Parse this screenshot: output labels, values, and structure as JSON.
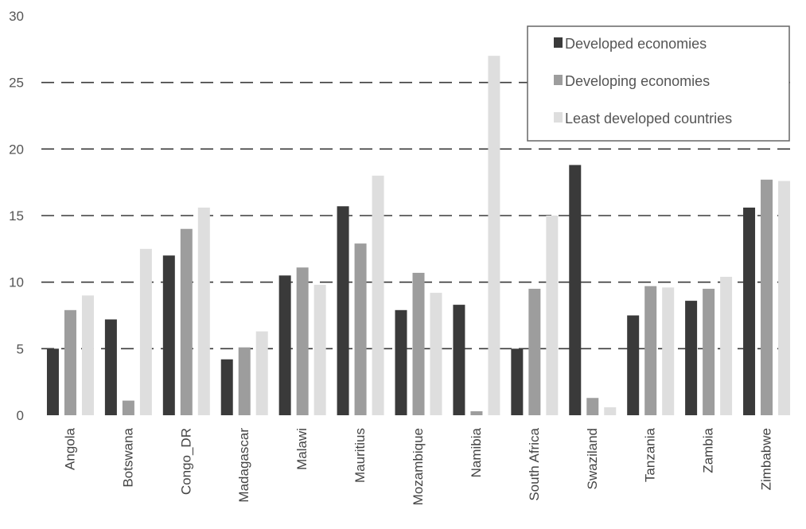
{
  "chart_data": {
    "type": "bar",
    "categories": [
      "Angola",
      "Botswana",
      "Congo_DR",
      "Madagascar",
      "Malawi",
      "Mauritius",
      "Mozambique",
      "Namibia",
      "South Africa",
      "Swaziland",
      "Tanzania",
      "Zambia",
      "Zimbabwe"
    ],
    "series": [
      {
        "name": "Developed economies",
        "color": "#3a3a3a",
        "values": [
          5.0,
          7.2,
          12.0,
          4.2,
          10.5,
          15.7,
          7.9,
          8.3,
          5.0,
          18.8,
          7.5,
          8.6,
          15.6
        ]
      },
      {
        "name": "Developing economies",
        "color": "#9d9d9d",
        "values": [
          7.9,
          1.1,
          14.0,
          5.1,
          11.1,
          12.9,
          10.7,
          0.3,
          9.5,
          1.3,
          9.7,
          9.5,
          17.7
        ]
      },
      {
        "name": "Least developed countries",
        "color": "#dedede",
        "values": [
          9.0,
          12.5,
          15.6,
          6.3,
          9.8,
          18.0,
          9.2,
          27.0,
          15.0,
          0.6,
          9.6,
          10.4,
          17.6
        ]
      }
    ],
    "ylim": [
      0,
      30
    ],
    "yticks": [
      "0",
      "5",
      "10",
      "15",
      "20",
      "25",
      "30"
    ],
    "grid": true,
    "legend_position": "top-right",
    "title": "",
    "xlabel": "",
    "ylabel": ""
  }
}
